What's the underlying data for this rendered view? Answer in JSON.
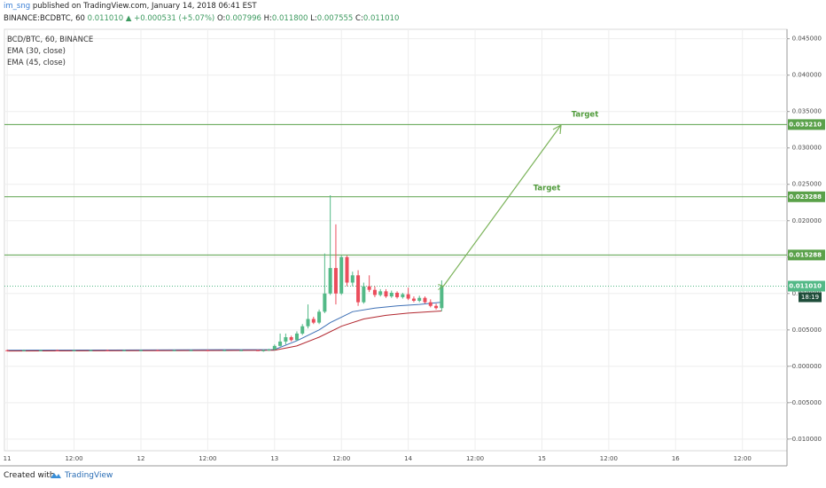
{
  "header": {
    "author": "im_sng",
    "published": "published on TradingView.com, January 14, 2018 06:41 EST",
    "symbol": "BINANCE:BCDBTC, 60",
    "last": "0.011010",
    "change": "▲ +0.000531 (+5.07%)",
    "ohlc": [
      {
        "label": "O:",
        "value": "0.007996"
      },
      {
        "label": "H:",
        "value": "0.011800"
      },
      {
        "label": "L:",
        "value": "0.007555"
      },
      {
        "label": "C:",
        "value": "0.011010"
      }
    ]
  },
  "legend": [
    "BCD/BTC, 60, BINANCE",
    "EMA (30, close)",
    "EMA (45, close)"
  ],
  "footer": {
    "created": "Created with",
    "brand": "TradingView"
  },
  "chart_data": {
    "type": "candlestick",
    "xlim": [
      -0.5,
      140
    ],
    "ylim": [
      -0.0116,
      0.0463
    ],
    "xticks": [
      {
        "value": 0,
        "label": "11"
      },
      {
        "value": 12,
        "label": "12:00"
      },
      {
        "value": 24,
        "label": "12"
      },
      {
        "value": 36,
        "label": "12:00"
      },
      {
        "value": 48,
        "label": "13"
      },
      {
        "value": 60,
        "label": "12:00"
      },
      {
        "value": 72,
        "label": "14"
      },
      {
        "value": 84,
        "label": "12:00"
      },
      {
        "value": 96,
        "label": "15"
      },
      {
        "value": 108,
        "label": "12:00"
      },
      {
        "value": 120,
        "label": "16"
      },
      {
        "value": 132,
        "label": "12:00"
      }
    ],
    "yticks": [
      {
        "value": 0.045,
        "label": "0.045000"
      },
      {
        "value": 0.04,
        "label": "0.040000"
      },
      {
        "value": 0.035,
        "label": "0.035000"
      },
      {
        "value": 0.03,
        "label": "0.030000"
      },
      {
        "value": 0.025,
        "label": "0.025000"
      },
      {
        "value": 0.02,
        "label": "0.020000"
      },
      {
        "value": 0.015,
        "label": "0.015000"
      },
      {
        "value": 0.01,
        "label": "0.010000"
      },
      {
        "value": 0.005,
        "label": "0.005000"
      },
      {
        "value": 0,
        "label": "-0.000000"
      },
      {
        "value": -0.005,
        "label": "-0.005000"
      },
      {
        "value": -0.01,
        "label": "-0.010000"
      }
    ],
    "grid": true,
    "up_color": "#53b987",
    "down_color": "#eb4d5c",
    "x": [
      0,
      3,
      6,
      9,
      12,
      15,
      18,
      21,
      24,
      27,
      30,
      33,
      36,
      39,
      42,
      45,
      46,
      47,
      48,
      49,
      50,
      51,
      52,
      53,
      54,
      55,
      56,
      57,
      58,
      59,
      60,
      61,
      62,
      63,
      64,
      65,
      66,
      67,
      68,
      69,
      70,
      71,
      72,
      73,
      74,
      75,
      76,
      77,
      78
    ],
    "open": [
      0.0022,
      0.0021,
      0.0022,
      0.0022,
      0.0021,
      0.0022,
      0.0022,
      0.0021,
      0.0022,
      0.0022,
      0.0021,
      0.0022,
      0.0022,
      0.0021,
      0.0022,
      0.0022,
      0.0021,
      0.0022,
      0.0023,
      0.0028,
      0.0034,
      0.004,
      0.0036,
      0.0045,
      0.0055,
      0.0065,
      0.006,
      0.0075,
      0.01,
      0.0135,
      0.01,
      0.015,
      0.0115,
      0.0125,
      0.0088,
      0.011,
      0.0105,
      0.0098,
      0.0103,
      0.0096,
      0.0101,
      0.0095,
      0.0099,
      0.0093,
      0.009,
      0.0094,
      0.0088,
      0.0083,
      0.007996
    ],
    "high": [
      0.0023,
      0.0023,
      0.0023,
      0.0023,
      0.0023,
      0.0023,
      0.0023,
      0.0023,
      0.0023,
      0.0023,
      0.0023,
      0.0023,
      0.0023,
      0.0023,
      0.0023,
      0.0023,
      0.0023,
      0.0024,
      0.003,
      0.0045,
      0.0045,
      0.0042,
      0.0048,
      0.0058,
      0.0085,
      0.0068,
      0.0078,
      0.0155,
      0.0235,
      0.0195,
      0.0152,
      0.0152,
      0.013,
      0.0132,
      0.0115,
      0.0125,
      0.011,
      0.0106,
      0.0106,
      0.0104,
      0.0103,
      0.0101,
      0.0108,
      0.0096,
      0.0097,
      0.0096,
      0.0092,
      0.0086,
      0.0118
    ],
    "low": [
      0.0021,
      0.0021,
      0.0021,
      0.0021,
      0.0021,
      0.0021,
      0.0021,
      0.0021,
      0.0021,
      0.0021,
      0.0021,
      0.0021,
      0.0021,
      0.0021,
      0.0021,
      0.0021,
      0.002,
      0.0021,
      0.0022,
      0.0027,
      0.003,
      0.0034,
      0.0035,
      0.0043,
      0.0052,
      0.0058,
      0.0058,
      0.0073,
      0.0098,
      0.0085,
      0.0098,
      0.011,
      0.011,
      0.0083,
      0.0086,
      0.0102,
      0.0095,
      0.0096,
      0.0094,
      0.0094,
      0.0093,
      0.0093,
      0.0091,
      0.0088,
      0.0088,
      0.0086,
      0.0081,
      0.0078,
      0.007555
    ],
    "close": [
      0.0021,
      0.0022,
      0.0022,
      0.0021,
      0.0022,
      0.0022,
      0.0021,
      0.0022,
      0.0022,
      0.0021,
      0.0022,
      0.0022,
      0.0021,
      0.0022,
      0.0022,
      0.0021,
      0.0022,
      0.0023,
      0.0028,
      0.0034,
      0.004,
      0.0036,
      0.0045,
      0.0055,
      0.0065,
      0.006,
      0.0075,
      0.01,
      0.0135,
      0.01,
      0.015,
      0.0115,
      0.0125,
      0.0088,
      0.011,
      0.0105,
      0.0098,
      0.0103,
      0.0096,
      0.0101,
      0.0095,
      0.0099,
      0.0093,
      0.009,
      0.0094,
      0.0088,
      0.0083,
      0.008,
      0.01101
    ],
    "series": [
      {
        "name": "EMA (30, close)",
        "color": "#3d6fb5",
        "x": [
          0,
          48,
          52,
          56,
          58,
          62,
          66,
          70,
          74,
          78
        ],
        "values": [
          0.0022,
          0.0023,
          0.0035,
          0.005,
          0.006,
          0.0075,
          0.008,
          0.0083,
          0.0085,
          0.0088
        ]
      },
      {
        "name": "EMA (45, close)",
        "color": "#b2272f",
        "x": [
          0,
          48,
          52,
          56,
          60,
          64,
          68,
          72,
          78
        ],
        "values": [
          0.0021,
          0.0022,
          0.0028,
          0.004,
          0.0055,
          0.0065,
          0.007,
          0.0073,
          0.0076
        ]
      }
    ],
    "levels": [
      {
        "value": 0.03321,
        "label": "0.033210"
      },
      {
        "value": 0.023288,
        "label": "0.023288"
      },
      {
        "value": 0.015288,
        "label": "0.015288"
      }
    ],
    "level_color": "#5aa14a",
    "price_line": {
      "value": 0.01101,
      "label": "0.011010",
      "time": "18:19"
    },
    "annotations": [
      "Target",
      "Target"
    ]
  }
}
